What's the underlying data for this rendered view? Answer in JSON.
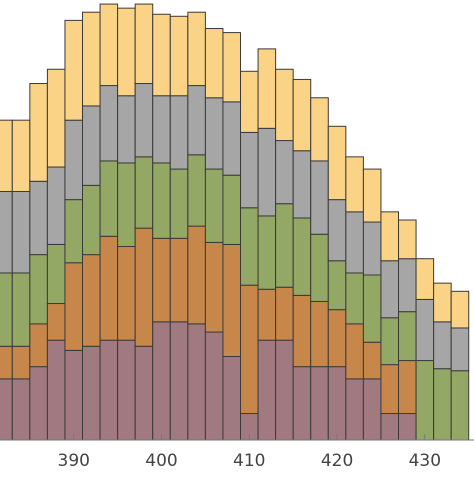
{
  "chart_data": {
    "type": "bar",
    "stacked": true,
    "x": [
      382,
      384,
      386,
      388,
      390,
      392,
      394,
      396,
      398,
      400,
      402,
      404,
      406,
      408,
      410,
      412,
      414,
      416,
      418,
      420,
      422,
      424,
      426,
      428,
      430,
      432,
      434
    ],
    "xlim": [
      381.6,
      435.6
    ],
    "ylim": [
      0,
      21.6
    ],
    "xticks": [
      390,
      400,
      410,
      420,
      430
    ],
    "xtick_labels": [
      "390",
      "400",
      "410",
      "420",
      "430"
    ],
    "title": "",
    "xlabel": "",
    "ylabel": "",
    "grid": false,
    "legend": "none",
    "series": [
      {
        "color": "#a07a80",
        "values": [
          3.0,
          3.0,
          3.6,
          4.9,
          4.4,
          4.6,
          4.9,
          4.9,
          4.6,
          5.8,
          5.8,
          5.7,
          5.3,
          4.1,
          1.3,
          4.9,
          4.9,
          3.6,
          3.6,
          3.6,
          3.0,
          3.0,
          1.3,
          1.3,
          0.0,
          0.0,
          0.0
        ]
      },
      {
        "color": "#c8874a",
        "values": [
          1.6,
          1.6,
          2.1,
          1.8,
          4.3,
          4.5,
          5.1,
          4.6,
          5.8,
          4.1,
          4.1,
          4.8,
          4.4,
          5.5,
          6.3,
          2.5,
          2.6,
          3.5,
          3.2,
          2.8,
          2.7,
          1.8,
          2.4,
          2.6,
          0.0,
          0.0,
          0.0
        ]
      },
      {
        "color": "#94a866",
        "values": [
          3.6,
          3.6,
          3.4,
          2.9,
          3.1,
          3.4,
          3.7,
          4.1,
          3.5,
          3.7,
          3.4,
          3.5,
          3.6,
          3.4,
          3.8,
          3.6,
          4.1,
          3.8,
          3.3,
          2.4,
          2.5,
          3.3,
          2.3,
          2.4,
          3.9,
          3.5,
          3.4
        ]
      },
      {
        "color": "#a6a6a6",
        "values": [
          4.0,
          4.0,
          3.6,
          3.8,
          3.9,
          3.9,
          3.7,
          3.3,
          3.6,
          3.3,
          3.6,
          3.4,
          3.5,
          3.6,
          3.7,
          4.3,
          3.1,
          3.3,
          3.6,
          3.0,
          3.0,
          2.6,
          2.8,
          2.6,
          3.0,
          2.3,
          2.1
        ]
      },
      {
        "color": "#fad387",
        "values": [
          3.5,
          3.5,
          4.8,
          4.8,
          4.9,
          4.6,
          4.0,
          4.3,
          3.9,
          4.0,
          3.9,
          3.6,
          3.4,
          3.4,
          3.0,
          3.9,
          3.5,
          3.5,
          3.1,
          3.6,
          2.7,
          2.6,
          2.4,
          1.9,
          2.0,
          1.9,
          1.8
        ]
      }
    ]
  }
}
